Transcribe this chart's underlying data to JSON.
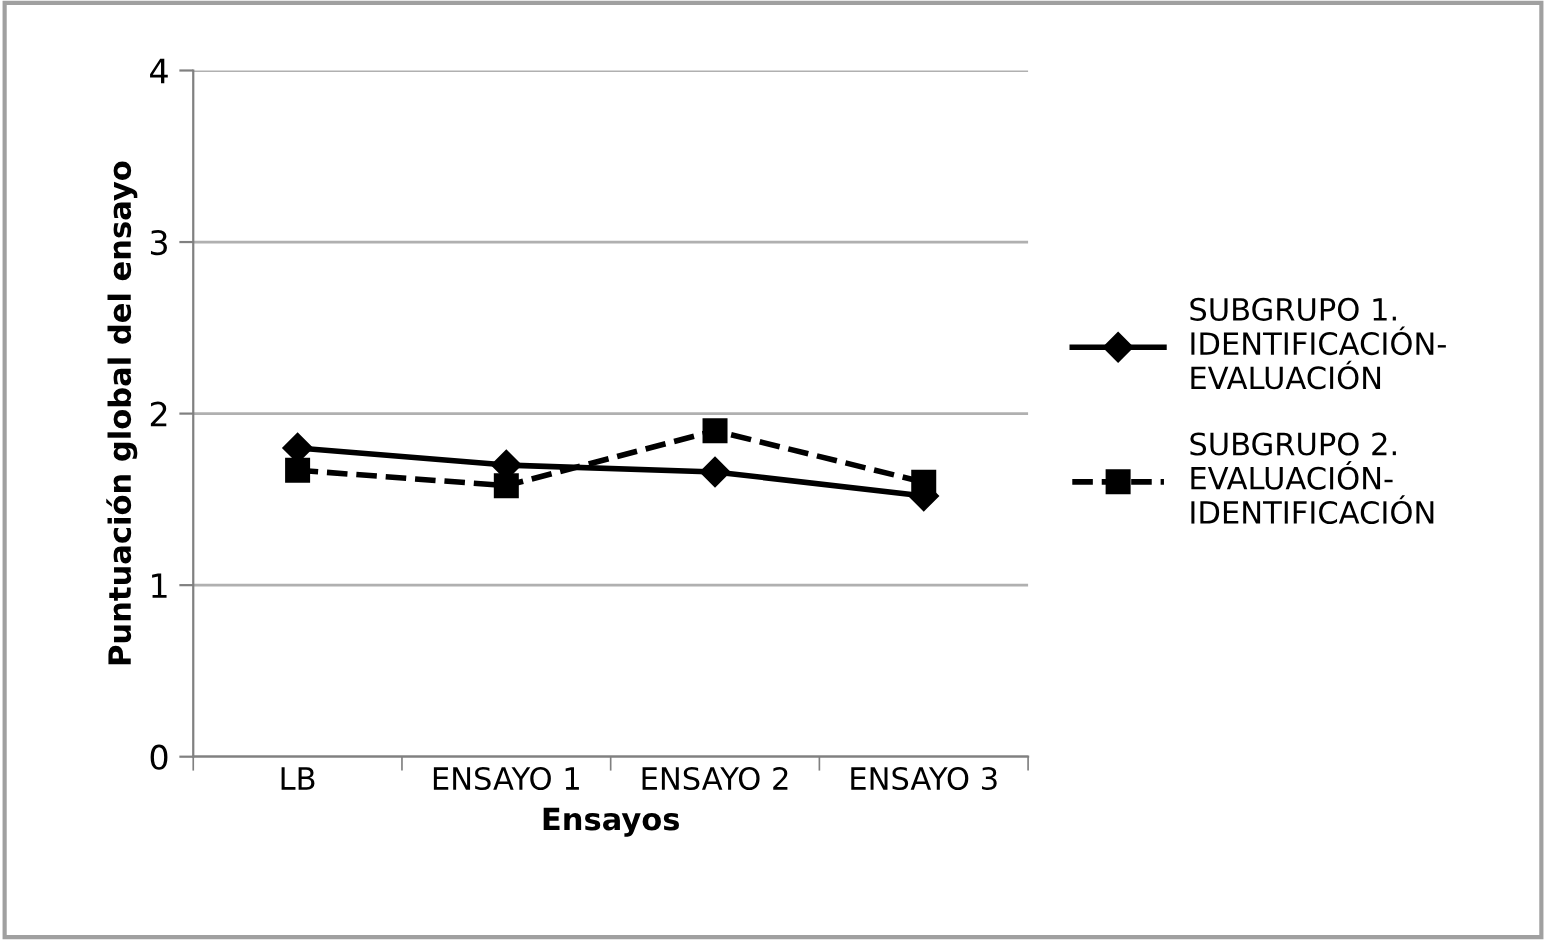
{
  "chart_data": {
    "type": "line",
    "xlabel": "Ensayos",
    "ylabel": "Puntuación global del ensayo",
    "categories": [
      "LB",
      "ENSAYO 1",
      "ENSAYO 2",
      "ENSAYO 3"
    ],
    "series": [
      {
        "name": "SUBGRUPO 1.\nIDENTIFICACIÓN-\nEVALUACIÓN",
        "color": "#000000",
        "marker": "diamond",
        "line_style": "solid",
        "values": [
          1.8,
          1.7,
          1.66,
          1.52
        ]
      },
      {
        "name": "SUBGRUPO 2.\nEVALUACIÓN-\nIDENTIFICACIÓN",
        "color": "#000000",
        "marker": "square",
        "line_style": "dashed",
        "values": [
          1.67,
          1.58,
          1.9,
          1.6
        ]
      }
    ],
    "ylim": [
      0,
      4
    ],
    "yticks": [
      0,
      1,
      2,
      3,
      4
    ],
    "grid": "y",
    "legend": "right"
  }
}
